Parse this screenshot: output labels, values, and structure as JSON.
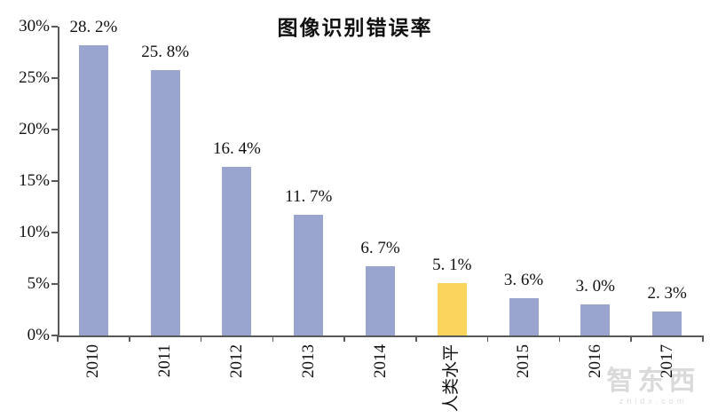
{
  "chart_data": {
    "type": "bar",
    "title": "图像识别错误率",
    "categories": [
      "2010",
      "2011",
      "2012",
      "2013",
      "2014",
      "人类水平",
      "2015",
      "2016",
      "2017"
    ],
    "values": [
      28.2,
      25.8,
      16.4,
      11.7,
      6.7,
      5.1,
      3.6,
      3.0,
      2.3
    ],
    "value_labels": [
      "28. 2%",
      "25. 8%",
      "16. 4%",
      "11. 7%",
      "6. 7%",
      "5. 1%",
      "3. 6%",
      "3. 0%",
      "2. 3%"
    ],
    "highlight_index": 5,
    "ylim": [
      0,
      30
    ],
    "ytick_values": [
      30,
      25,
      20,
      15,
      10,
      5,
      0
    ],
    "ytick_labels": [
      "30%",
      "25%",
      "20%",
      "15%",
      "10%",
      "5%",
      "0%"
    ],
    "xlabel": "",
    "ylabel": "",
    "legend": "none",
    "grid": "off",
    "x_labels_rotation_deg": -90,
    "colors": {
      "bar": "#99A4CF",
      "highlight": "#FBD45E",
      "axis": "#595959",
      "text": "#111111"
    }
  },
  "watermark": {
    "brand": "智东西",
    "domain": "zhidx.com"
  }
}
